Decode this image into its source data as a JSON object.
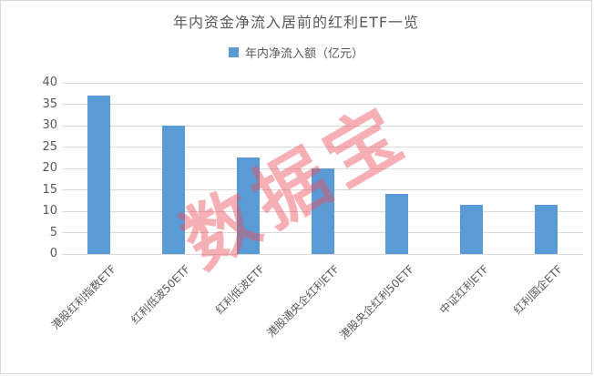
{
  "chart": {
    "title": "年内资金净流入居前的红利ETF一览",
    "legend_label": "年内净流入额（亿元）",
    "watermark": "数据宝",
    "colors": {
      "bar": "#5B9BD5",
      "gridline": "#D9D9D9",
      "text": "#595959",
      "watermark": "rgba(233,78,90,0.45)",
      "frame_border": "#D9D9D9"
    }
  },
  "chart_data": {
    "type": "bar",
    "title": "年内资金净流入居前的红利ETF一览",
    "series": [
      {
        "name": "年内净流入额（亿元）",
        "values": [
          37,
          30,
          22.5,
          20,
          14,
          11.5,
          11.5
        ]
      }
    ],
    "categories": [
      "港股红利指数ETF",
      "红利低波50ETF",
      "红利低波ETF",
      "港股通央企红利ETF",
      "港股央企红利50ETF",
      "中证红利ETF",
      "红利国企ETF"
    ],
    "xlabel": "",
    "ylabel": "",
    "ylim": [
      0,
      40
    ],
    "yticks": [
      0,
      5,
      10,
      15,
      20,
      25,
      30,
      35,
      40
    ],
    "grid": true,
    "legend_position": "top",
    "x_tick_label_rotation_deg": 45
  }
}
